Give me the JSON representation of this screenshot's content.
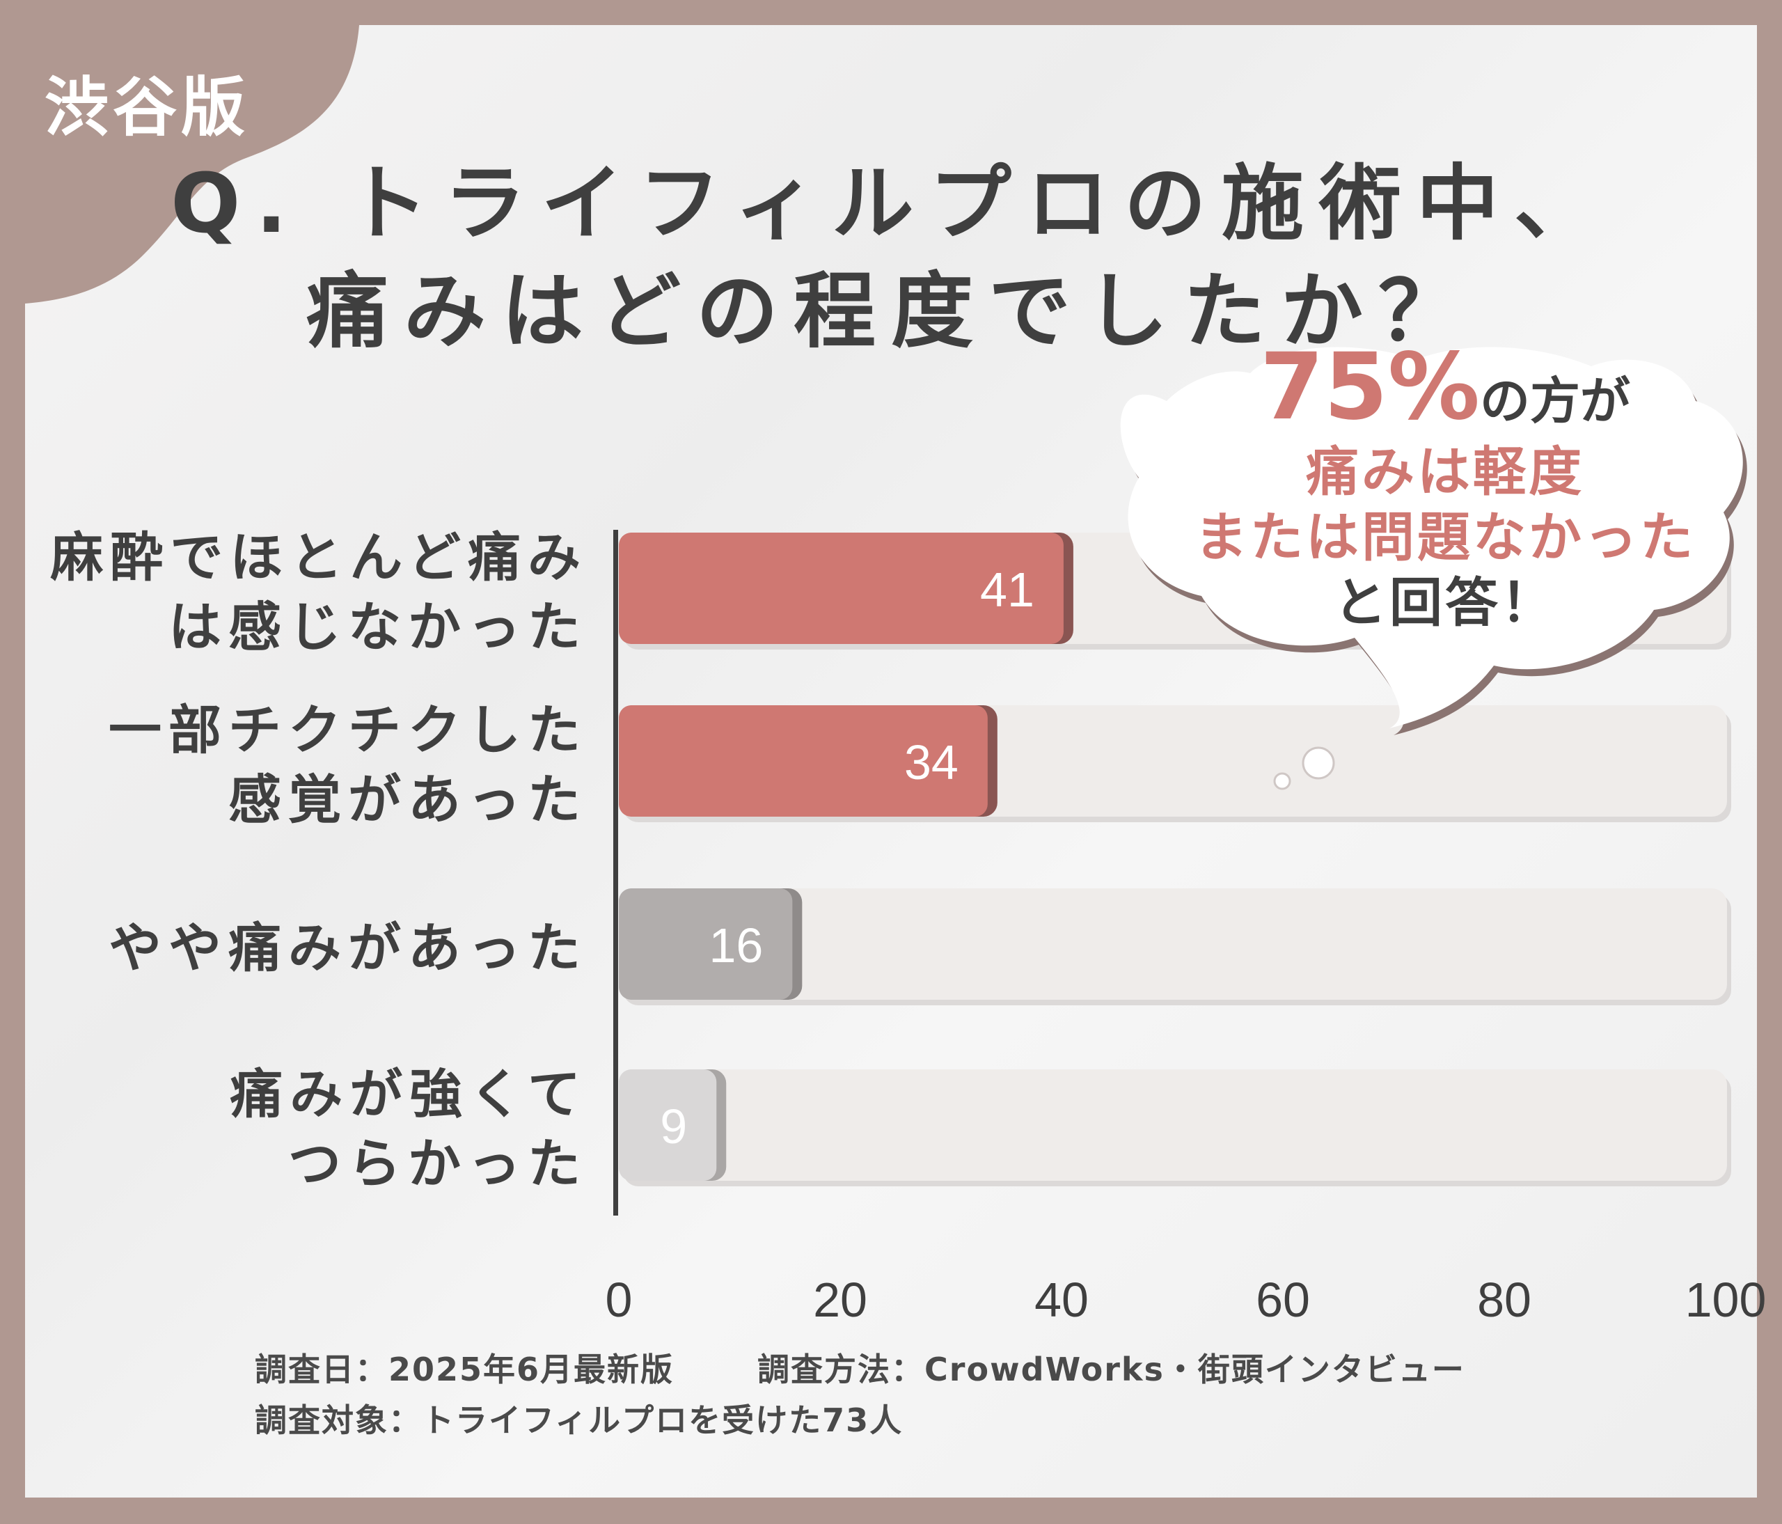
{
  "badge": {
    "label": "渋谷版"
  },
  "title": {
    "line1": "Q. トライフィルプロの施術中、",
    "line2": "痛みはどの程度でしたか？"
  },
  "callout": {
    "percent": "75%",
    "suffix": "の方が",
    "line2": "痛みは軽度",
    "line3": "または問題なかった",
    "line4": "と回答！"
  },
  "footer": {
    "date": "調査日：2025年6月最新版",
    "method": "調査方法：CrowdWorks・街頭インタビュー",
    "target": "調査対象：トライフィルプロを受けた73人"
  },
  "colors": {
    "accent": "#cf7872",
    "accent_shadow": "#8a5552",
    "gray_bar": "#b1adac",
    "light_bar": "#d9d7d7",
    "track": "#efecea",
    "text": "#3f3f3f",
    "frame": "#b09891"
  },
  "chart_data": {
    "type": "bar",
    "orientation": "horizontal",
    "title": "Q. トライフィルプロの施術中、痛みはどの程度でしたか？",
    "categories": [
      [
        "麻酔でほとんど痛み",
        "は感じなかった"
      ],
      [
        "一部チクチクした",
        "感覚があった"
      ],
      [
        "やや痛みがあった"
      ],
      [
        "痛みが強くて",
        "つらかった"
      ]
    ],
    "values": [
      41,
      34,
      16,
      9
    ],
    "value_labels": [
      "41",
      "34",
      "16",
      "9"
    ],
    "bar_colors": [
      "#cf7872",
      "#cf7872",
      "#b1adac",
      "#d9d7d7"
    ],
    "xlim": [
      0,
      100
    ],
    "xticks": [
      0,
      20,
      40,
      60,
      80,
      100
    ],
    "xtick_labels": [
      "0",
      "20",
      "40",
      "60",
      "80",
      "100"
    ],
    "xlabel": "",
    "ylabel": "",
    "grid": false
  }
}
